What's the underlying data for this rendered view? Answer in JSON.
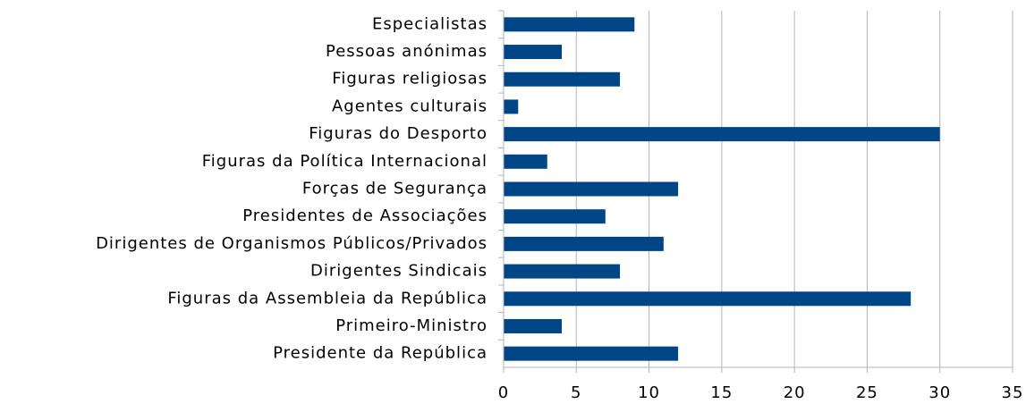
{
  "chart_data": {
    "type": "hbar",
    "categories": [
      "Especialistas",
      "Pessoas anónimas",
      "Figuras religiosas",
      "Agentes culturais",
      "Figuras do Desporto",
      "Figuras da Política Internacional",
      "Forças de Segurança",
      "Presidentes de Associações",
      "Dirigentes de Organismos Públicos/Privados",
      "Dirigentes Sindicais",
      "Figuras da Assembleia da República",
      "Primeiro-Ministro",
      "Presidente da República"
    ],
    "values": [
      9,
      4,
      8,
      1,
      30,
      3,
      12,
      7,
      11,
      8,
      28,
      4,
      12
    ],
    "color": "#004586",
    "xlim": [
      0,
      35
    ],
    "xticks": [
      0,
      5,
      10,
      15,
      20,
      25,
      30,
      35
    ],
    "grid": true
  }
}
